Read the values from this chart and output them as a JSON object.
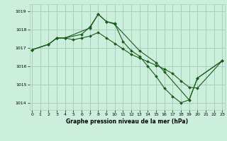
{
  "title": "Graphe pression niveau de la mer (hPa)",
  "bg_color": "#cceedd",
  "grid_color": "#aaccbb",
  "line_color": "#1a5c1a",
  "xlim": [
    -0.3,
    23.3
  ],
  "ylim": [
    1013.6,
    1019.4
  ],
  "yticks": [
    1014,
    1015,
    1016,
    1017,
    1018,
    1019
  ],
  "xticks": [
    0,
    1,
    2,
    3,
    4,
    5,
    6,
    7,
    8,
    9,
    10,
    11,
    12,
    13,
    14,
    15,
    16,
    17,
    18,
    19,
    20,
    21,
    22,
    23
  ],
  "s1x": [
    0,
    2,
    3,
    4,
    7,
    8,
    9,
    10,
    13,
    15,
    16,
    19,
    20,
    23
  ],
  "s1y": [
    1016.9,
    1017.2,
    1017.55,
    1017.55,
    1018.1,
    1018.85,
    1018.45,
    1018.3,
    1016.85,
    1016.2,
    1015.7,
    1014.15,
    1015.35,
    1016.3
  ],
  "s2x": [
    0,
    2,
    3,
    4,
    6,
    7,
    8,
    9,
    10,
    11,
    12,
    13,
    14,
    15,
    16,
    17,
    18,
    19,
    20,
    23
  ],
  "s2y": [
    1016.9,
    1017.2,
    1017.55,
    1017.55,
    1017.75,
    1018.15,
    1018.85,
    1018.45,
    1018.35,
    1017.35,
    1016.85,
    1016.55,
    1016.0,
    1015.45,
    1014.8,
    1014.35,
    1014.0,
    1014.15,
    1015.35,
    1016.3
  ],
  "s3x": [
    0,
    2,
    3,
    4,
    5,
    6,
    7,
    8,
    9,
    10,
    11,
    12,
    13,
    14,
    15,
    16,
    17,
    18,
    19,
    20,
    23
  ],
  "s3y": [
    1016.9,
    1017.2,
    1017.55,
    1017.55,
    1017.45,
    1017.55,
    1017.65,
    1017.85,
    1017.55,
    1017.25,
    1016.95,
    1016.65,
    1016.45,
    1016.25,
    1016.05,
    1015.85,
    1015.6,
    1015.2,
    1014.85,
    1014.8,
    1016.3
  ]
}
